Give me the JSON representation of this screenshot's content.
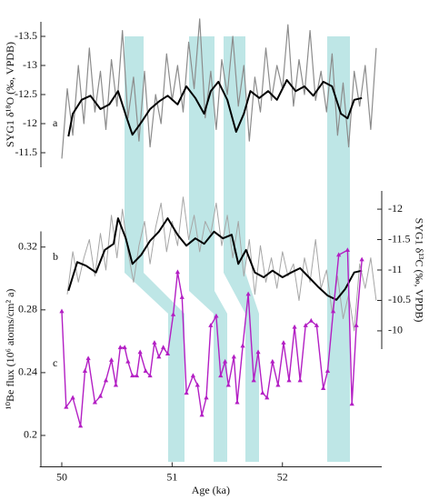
{
  "chart_data": [
    {
      "type": "line",
      "label": "a",
      "ylabel": "SYG1 δ¹⁸O (‰, VPDB)",
      "yaxis": "left",
      "yinverted": true,
      "xlim": [
        49.8,
        52.9
      ],
      "ylim": [
        -13.75,
        -11.25
      ],
      "yticks": [
        -13.5,
        -13,
        -12.5,
        -12,
        -11.5
      ],
      "series": [
        {
          "color": "#8c8c8c",
          "width": 1.2,
          "x": [
            50.0,
            50.05,
            50.1,
            50.15,
            50.2,
            50.25,
            50.3,
            50.35,
            50.4,
            50.45,
            50.5,
            50.55,
            50.6,
            50.65,
            50.7,
            50.75,
            50.8,
            50.85,
            50.9,
            50.95,
            51.0,
            51.05,
            51.1,
            51.15,
            51.2,
            51.25,
            51.3,
            51.35,
            51.4,
            51.45,
            51.5,
            51.55,
            51.6,
            51.65,
            51.7,
            51.75,
            51.8,
            51.85,
            51.9,
            51.95,
            52.0,
            52.05,
            52.1,
            52.15,
            52.2,
            52.25,
            52.3,
            52.35,
            52.4,
            52.45,
            52.5,
            52.55,
            52.6,
            52.65,
            52.7,
            52.75,
            52.8,
            52.85
          ],
          "values": [
            -11.4,
            -12.6,
            -11.8,
            -13.0,
            -12.0,
            -13.3,
            -12.2,
            -12.9,
            -11.9,
            -13.1,
            -12.3,
            -13.6,
            -12.1,
            -12.8,
            -11.7,
            -12.9,
            -11.6,
            -12.5,
            -12.0,
            -13.2,
            -12.4,
            -13.0,
            -12.2,
            -13.4,
            -12.6,
            -13.8,
            -12.1,
            -12.9,
            -11.9,
            -13.1,
            -12.5,
            -13.5,
            -12.3,
            -13.0,
            -11.7,
            -12.8,
            -12.2,
            -13.3,
            -12.4,
            -13.0,
            -12.6,
            -13.7,
            -12.3,
            -13.1,
            -12.5,
            -13.6,
            -12.4,
            -12.9,
            -12.2,
            -13.2,
            -11.8,
            -12.7,
            -11.6,
            -12.9,
            -12.3,
            -13.0,
            -11.9,
            -13.3
          ]
        },
        {
          "color": "#000000",
          "width": 2,
          "x": [
            50.06,
            50.1,
            50.18,
            50.26,
            50.35,
            50.43,
            50.51,
            50.59,
            50.64,
            50.72,
            50.8,
            50.88,
            50.96,
            51.05,
            51.13,
            51.21,
            51.29,
            51.35,
            51.42,
            51.5,
            51.58,
            51.65,
            51.71,
            51.79,
            51.87,
            51.95,
            52.04,
            52.12,
            52.2,
            52.28,
            52.37,
            52.45,
            52.53,
            52.59,
            52.65,
            52.72
          ],
          "values": [
            -11.78,
            -12.17,
            -12.41,
            -12.48,
            -12.25,
            -12.33,
            -12.56,
            -12.09,
            -11.81,
            -12.02,
            -12.25,
            -12.38,
            -12.48,
            -12.33,
            -12.64,
            -12.44,
            -12.17,
            -12.56,
            -12.72,
            -12.41,
            -11.86,
            -12.17,
            -12.56,
            -12.44,
            -12.56,
            -12.41,
            -12.75,
            -12.56,
            -12.64,
            -12.48,
            -12.72,
            -12.64,
            -12.17,
            -12.09,
            -12.41,
            -12.44
          ]
        }
      ]
    },
    {
      "type": "line",
      "label": "b",
      "ylabel": "SYG1 δ¹³C (‰, VPDB)",
      "yaxis": "right",
      "yinverted": true,
      "xlim": [
        49.8,
        52.9
      ],
      "ylim": [
        -12.3,
        -9.7
      ],
      "yticks": [
        -12,
        -11.5,
        -11,
        -10.5,
        -10
      ],
      "series": [
        {
          "color": "#a6a6a6",
          "width": 1,
          "x": [
            50.05,
            50.1,
            50.15,
            50.2,
            50.25,
            50.3,
            50.35,
            50.4,
            50.45,
            50.5,
            50.55,
            50.6,
            50.65,
            50.7,
            50.75,
            50.8,
            50.85,
            50.9,
            50.95,
            51.0,
            51.05,
            51.1,
            51.15,
            51.2,
            51.25,
            51.3,
            51.35,
            51.4,
            51.45,
            51.5,
            51.55,
            51.6,
            51.65,
            51.7,
            51.75,
            51.8,
            51.85,
            51.9,
            51.95,
            52.0,
            52.05,
            52.1,
            52.15,
            52.2,
            52.25,
            52.3,
            52.35,
            52.4,
            52.45,
            52.5,
            52.55,
            52.6,
            52.65,
            52.7,
            52.75,
            52.8,
            52.85
          ],
          "values": [
            -10.6,
            -11.3,
            -10.8,
            -11.2,
            -11.5,
            -10.9,
            -11.6,
            -11.0,
            -11.9,
            -11.2,
            -12.0,
            -11.3,
            -10.8,
            -11.4,
            -11.8,
            -11.1,
            -11.7,
            -12.1,
            -11.3,
            -11.8,
            -11.4,
            -12.2,
            -11.5,
            -11.9,
            -11.3,
            -11.8,
            -11.6,
            -12.1,
            -11.4,
            -11.9,
            -11.2,
            -11.8,
            -10.9,
            -11.5,
            -10.6,
            -11.4,
            -10.8,
            -11.2,
            -10.7,
            -11.3,
            -10.9,
            -11.1,
            -10.5,
            -11.2,
            -10.8,
            -11.5,
            -10.7,
            -11.0,
            -10.3,
            -10.9,
            -10.2,
            -10.6,
            -10.0,
            -11.1,
            -10.7,
            -11.2,
            -10.5
          ]
        },
        {
          "color": "#000000",
          "width": 2,
          "x": [
            50.06,
            50.14,
            50.22,
            50.31,
            50.39,
            50.47,
            50.51,
            50.58,
            50.64,
            50.72,
            50.8,
            50.88,
            50.96,
            51.05,
            51.13,
            51.21,
            51.29,
            51.38,
            51.46,
            51.54,
            51.6,
            51.67,
            51.75,
            51.83,
            51.91,
            52.0,
            52.08,
            52.16,
            52.24,
            52.32,
            52.41,
            52.49,
            52.57,
            52.65,
            52.72
          ],
          "values": [
            -10.66,
            -11.13,
            -11.07,
            -10.96,
            -11.33,
            -11.43,
            -11.85,
            -11.52,
            -11.1,
            -11.25,
            -11.48,
            -11.63,
            -11.85,
            -11.58,
            -11.4,
            -11.52,
            -11.43,
            -11.63,
            -11.52,
            -11.58,
            -11.1,
            -11.33,
            -10.96,
            -10.88,
            -10.99,
            -10.88,
            -10.96,
            -11.03,
            -10.88,
            -10.73,
            -10.58,
            -10.51,
            -10.69,
            -10.96,
            -10.99
          ]
        }
      ]
    },
    {
      "type": "line",
      "label": "c",
      "ylabel": "¹⁰Be flux (10⁶ atoms/cm² a)",
      "yaxis": "left",
      "yinverted": false,
      "xlabel": "Age (ka)",
      "xlim": [
        49.8,
        52.9
      ],
      "xticks": [
        50,
        51,
        52
      ],
      "ylim": [
        0.18,
        0.33
      ],
      "yticks": [
        0.2,
        0.24,
        0.28,
        0.32
      ],
      "series": [
        {
          "color": "#b31fc4",
          "width": 1.4,
          "markers": true,
          "x": [
            50.0,
            50.04,
            50.1,
            50.17,
            50.21,
            50.24,
            50.3,
            50.35,
            50.4,
            50.45,
            50.49,
            50.53,
            50.57,
            50.6,
            50.64,
            50.68,
            50.71,
            50.76,
            50.8,
            50.84,
            50.88,
            50.92,
            50.96,
            51.01,
            51.05,
            51.09,
            51.13,
            51.19,
            51.23,
            51.27,
            51.31,
            51.35,
            51.4,
            51.44,
            51.48,
            51.51,
            51.56,
            51.59,
            51.64,
            51.69,
            51.74,
            51.78,
            51.82,
            51.86,
            51.91,
            51.96,
            52.01,
            52.06,
            52.11,
            52.16,
            52.21,
            52.26,
            52.31,
            52.37,
            52.41,
            52.46,
            52.51,
            52.59,
            52.63,
            52.67,
            52.72
          ],
          "values": [
            0.279,
            0.218,
            0.224,
            0.206,
            0.241,
            0.249,
            0.221,
            0.225,
            0.235,
            0.248,
            0.232,
            0.256,
            0.256,
            0.247,
            0.238,
            0.238,
            0.253,
            0.241,
            0.238,
            0.259,
            0.25,
            0.256,
            0.252,
            0.277,
            0.304,
            0.288,
            0.227,
            0.238,
            0.232,
            0.213,
            0.224,
            0.27,
            0.276,
            0.238,
            0.247,
            0.232,
            0.25,
            0.221,
            0.257,
            0.29,
            0.235,
            0.253,
            0.227,
            0.224,
            0.247,
            0.232,
            0.259,
            0.235,
            0.269,
            0.235,
            0.27,
            0.273,
            0.27,
            0.23,
            0.241,
            0.279,
            0.315,
            0.318,
            0.22,
            0.27,
            0.312
          ]
        }
      ]
    }
  ]
}
